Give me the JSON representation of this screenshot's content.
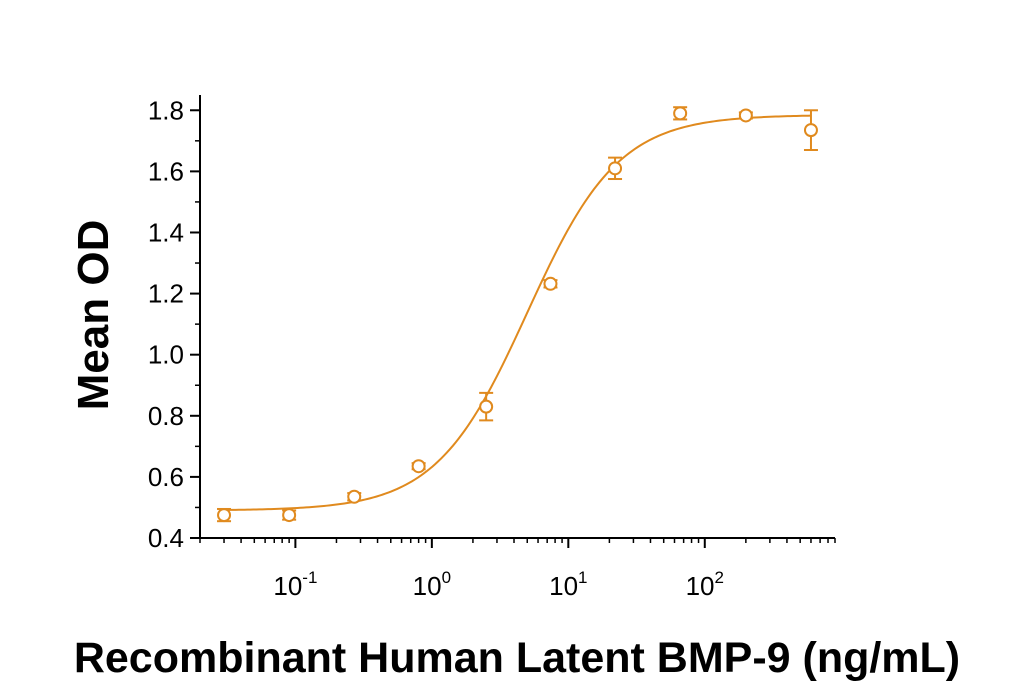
{
  "chart_data": {
    "type": "scatter",
    "title": "",
    "xlabel": "Recombinant Human Latent BMP-9 (ng/mL)",
    "ylabel": "Mean OD",
    "x_scale": "log",
    "xlim": [
      0.02,
      900
    ],
    "ylim": [
      0.4,
      1.85
    ],
    "grid": false,
    "legend": "none",
    "color": "#e08a1e",
    "y_ticks": [
      {
        "value": 0.4,
        "label": "0.4"
      },
      {
        "value": 0.6,
        "label": "0.6"
      },
      {
        "value": 0.8,
        "label": "0.8"
      },
      {
        "value": 1.0,
        "label": "1.0"
      },
      {
        "value": 1.2,
        "label": "1.2"
      },
      {
        "value": 1.4,
        "label": "1.4"
      },
      {
        "value": 1.6,
        "label": "1.6"
      },
      {
        "value": 1.8,
        "label": "1.8"
      }
    ],
    "x_ticks": [
      {
        "value": 0.1,
        "base": "10",
        "exp": "-1"
      },
      {
        "value": 1,
        "base": "10",
        "exp": "0"
      },
      {
        "value": 10,
        "base": "10",
        "exp": "1"
      },
      {
        "value": 100,
        "base": "10",
        "exp": "2"
      }
    ],
    "series": [
      {
        "points": [
          {
            "x": 0.03,
            "y": 0.475,
            "err": 0.02
          },
          {
            "x": 0.09,
            "y": 0.475,
            "err": 0.015
          },
          {
            "x": 0.27,
            "y": 0.535,
            "err": 0.012
          },
          {
            "x": 0.8,
            "y": 0.635,
            "err": 0.01
          },
          {
            "x": 2.5,
            "y": 0.83,
            "err": 0.045
          },
          {
            "x": 7.4,
            "y": 1.232,
            "err": 0.012
          },
          {
            "x": 22,
            "y": 1.61,
            "err": 0.035
          },
          {
            "x": 66,
            "y": 1.79,
            "err": 0.02
          },
          {
            "x": 200,
            "y": 1.783,
            "err": 0.01
          },
          {
            "x": 600,
            "y": 1.735,
            "err": 0.065
          }
        ],
        "fit": {
          "bottom": 0.49,
          "top": 1.785,
          "ec50": 5.0,
          "hill": 1.3
        }
      }
    ]
  }
}
